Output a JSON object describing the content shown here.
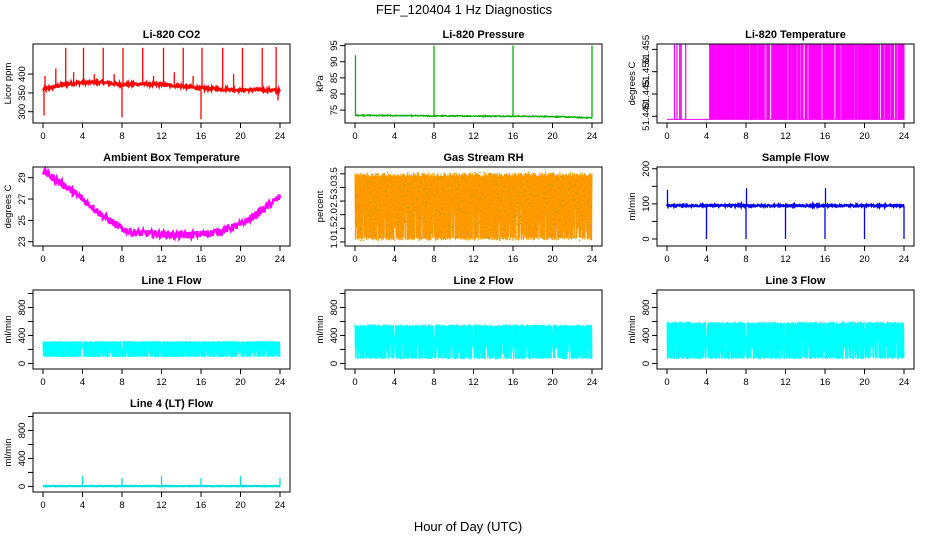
{
  "figure": {
    "title": "FEF_120404  1 Hz Diagnostics",
    "xlabel": "Hour of Day (UTC)"
  },
  "chart_data": [
    {
      "type": "line",
      "title": "Li-820 CO2",
      "ylabel": "Licor ppm",
      "color": "#ff0000",
      "xlim": [
        0,
        24
      ],
      "xticks": [
        0,
        4,
        8,
        12,
        16,
        20,
        24
      ],
      "ylim": [
        270,
        480
      ],
      "yticks": [
        300,
        350,
        400
      ],
      "baseline": [
        [
          0,
          360
        ],
        [
          1,
          365
        ],
        [
          2,
          372
        ],
        [
          4,
          378
        ],
        [
          6,
          378
        ],
        [
          8,
          372
        ],
        [
          10,
          374
        ],
        [
          12,
          372
        ],
        [
          14,
          368
        ],
        [
          16,
          362
        ],
        [
          18,
          360
        ],
        [
          20,
          358
        ],
        [
          22,
          358
        ],
        [
          24,
          356
        ]
      ],
      "noise": 4,
      "spikes": [
        [
          0.1,
          290
        ],
        [
          0.2,
          395
        ],
        [
          1.3,
          415
        ],
        [
          2.3,
          470
        ],
        [
          3.1,
          405
        ],
        [
          4.1,
          470
        ],
        [
          5.2,
          400
        ],
        [
          6.1,
          470
        ],
        [
          7.2,
          400
        ],
        [
          8.0,
          285
        ],
        [
          8.1,
          470
        ],
        [
          10.1,
          470
        ],
        [
          11.2,
          395
        ],
        [
          12.2,
          470
        ],
        [
          13.3,
          405
        ],
        [
          14.2,
          470
        ],
        [
          15.2,
          395
        ],
        [
          16.0,
          280
        ],
        [
          16.1,
          470
        ],
        [
          18.2,
          470
        ],
        [
          19.3,
          400
        ],
        [
          20.2,
          470
        ],
        [
          22.2,
          470
        ],
        [
          23.6,
          472
        ],
        [
          23.8,
          330
        ]
      ]
    },
    {
      "type": "line",
      "title": "Li-820 Pressure",
      "ylabel": "kPa",
      "color": "#00b000",
      "xlim": [
        0,
        24
      ],
      "xticks": [
        0,
        4,
        8,
        12,
        16,
        20,
        24
      ],
      "ylim": [
        71,
        95.5
      ],
      "yticks": [
        75,
        80,
        85,
        90,
        95
      ],
      "baseline": [
        [
          0,
          73.4
        ],
        [
          8,
          73.2
        ],
        [
          16,
          73.1
        ],
        [
          20,
          73.0
        ],
        [
          24,
          72.6
        ]
      ],
      "noise": 0.15,
      "spikes": [
        [
          0.05,
          92
        ],
        [
          8.0,
          95
        ],
        [
          16.0,
          95
        ],
        [
          24.0,
          95
        ]
      ]
    },
    {
      "type": "line",
      "title": "Li-820 Temperature",
      "ylabel": "degrees C",
      "color": "#ff00ff",
      "xlim": [
        0,
        24
      ],
      "xticks": [
        0,
        4,
        8,
        12,
        16,
        20,
        24
      ],
      "ylim": [
        51.4385,
        51.4562
      ],
      "yticks": [
        51.44,
        51.445,
        51.45,
        51.455
      ],
      "ytick_labels": [
        "51.440",
        "51.445",
        "51.450",
        "51.455"
      ],
      "low": 51.4393,
      "high": 51.4562,
      "dense_segments": [
        [
          0.6,
          2.2,
          0.25
        ],
        [
          4.3,
          24.0,
          0.7
        ]
      ]
    },
    {
      "type": "line",
      "title": "Ambient Box Temperature",
      "ylabel": "degrees C",
      "color": "#ff00ff",
      "xlim": [
        0,
        24
      ],
      "xticks": [
        0,
        4,
        8,
        12,
        16,
        20,
        24
      ],
      "ylim": [
        22.6,
        30.0
      ],
      "yticks": [
        23,
        25,
        27,
        29
      ],
      "baseline": [
        [
          0,
          29.6
        ],
        [
          2,
          28.4
        ],
        [
          4,
          27.0
        ],
        [
          6,
          25.5
        ],
        [
          8,
          24.2
        ],
        [
          9,
          23.9
        ],
        [
          10,
          23.8
        ],
        [
          12,
          23.7
        ],
        [
          14,
          23.6
        ],
        [
          16,
          23.7
        ],
        [
          17,
          23.8
        ],
        [
          18,
          24.0
        ],
        [
          20,
          24.6
        ],
        [
          22,
          25.8
        ],
        [
          24,
          27.2
        ]
      ],
      "noise": 0.35
    },
    {
      "type": "band",
      "title": "Gas Stream RH",
      "ylabel": "percent",
      "color": "#ff9900",
      "color2": "#cc9900",
      "xlim": [
        0,
        24
      ],
      "xticks": [
        0,
        4,
        8,
        12,
        16,
        20,
        24
      ],
      "ylim": [
        0.85,
        3.75
      ],
      "yticks": [
        1.0,
        1.5,
        2.0,
        2.5,
        3.0,
        3.5
      ],
      "ytick_labels": [
        "1.0",
        "1.5",
        "2.0",
        "2.5",
        "3.0",
        "3.5"
      ],
      "top": 3.55,
      "bottom": 1.05
    },
    {
      "type": "line",
      "title": "Sample Flow",
      "ylabel": "ml/min",
      "color": "#0000ee",
      "xlim": [
        0,
        24
      ],
      "xticks": [
        0,
        4,
        8,
        12,
        16,
        20,
        24
      ],
      "ylim": [
        -20,
        205
      ],
      "yticks": [
        0,
        50,
        100,
        150,
        200
      ],
      "ytick_labels": [
        "0",
        "",
        "100",
        "",
        "200"
      ],
      "baseline": [
        [
          0,
          95
        ],
        [
          24,
          95
        ]
      ],
      "noise": 2.5,
      "spikes": [
        [
          0.05,
          140
        ],
        [
          4.0,
          0
        ],
        [
          8.0,
          0
        ],
        [
          8.05,
          145
        ],
        [
          12.0,
          0
        ],
        [
          16.0,
          0
        ],
        [
          16.05,
          145
        ],
        [
          20.0,
          0
        ],
        [
          24.0,
          0
        ]
      ]
    },
    {
      "type": "band",
      "title": "Line 1 Flow",
      "ylabel": "ml/min",
      "color": "#00ffff",
      "xlim": [
        0,
        24
      ],
      "xticks": [
        0,
        4,
        8,
        12,
        16,
        20,
        24
      ],
      "ylim": [
        -80,
        1050
      ],
      "yticks": [
        0,
        200,
        400,
        600,
        800,
        1000
      ],
      "ytick_labels": [
        "0",
        "400",
        "800"
      ],
      "ytick_label_values": [
        0,
        400,
        800
      ],
      "top": 320,
      "bottom": 90,
      "gaps": [
        4,
        8,
        12,
        16,
        20
      ]
    },
    {
      "type": "band",
      "title": "Line 2 Flow",
      "ylabel": "ml/min",
      "color": "#00ffff",
      "xlim": [
        0,
        24
      ],
      "xticks": [
        0,
        4,
        8,
        12,
        16,
        20,
        24
      ],
      "ylim": [
        -80,
        1050
      ],
      "yticks": [
        0,
        200,
        400,
        600,
        800,
        1000
      ],
      "ytick_labels": [
        "0",
        "400",
        "800"
      ],
      "ytick_label_values": [
        0,
        400,
        800
      ],
      "top": 560,
      "bottom": 60,
      "gaps": [
        4,
        8,
        12,
        16,
        20
      ]
    },
    {
      "type": "band",
      "title": "Line 3 Flow",
      "ylabel": "ml/min",
      "color": "#00ffff",
      "xlim": [
        0,
        24
      ],
      "xticks": [
        0,
        4,
        8,
        12,
        16,
        20,
        24
      ],
      "ylim": [
        -80,
        1050
      ],
      "yticks": [
        0,
        200,
        400,
        600,
        800,
        1000
      ],
      "ytick_labels": [
        "0",
        "400",
        "800"
      ],
      "ytick_label_values": [
        0,
        400,
        800
      ],
      "top": 600,
      "bottom": 60,
      "gaps": [
        4,
        8,
        12,
        16,
        20
      ]
    },
    {
      "type": "line",
      "title": "Line 4 (LT) Flow",
      "ylabel": "ml/min",
      "color": "#00e0e0",
      "xlim": [
        0,
        24
      ],
      "xticks": [
        0,
        4,
        8,
        12,
        16,
        20,
        24
      ],
      "ylim": [
        -80,
        1050
      ],
      "yticks": [
        0,
        200,
        400,
        600,
        800,
        1000
      ],
      "ytick_labels": [
        "0",
        "400",
        "800"
      ],
      "ytick_label_values": [
        0,
        400,
        800
      ],
      "baseline": [
        [
          0,
          5
        ],
        [
          24,
          5
        ]
      ],
      "noise": 3,
      "spikes": [
        [
          4.0,
          150
        ],
        [
          8.0,
          120
        ],
        [
          12.0,
          150
        ],
        [
          16.0,
          120
        ],
        [
          20.0,
          150
        ],
        [
          24.0,
          120
        ]
      ]
    }
  ]
}
